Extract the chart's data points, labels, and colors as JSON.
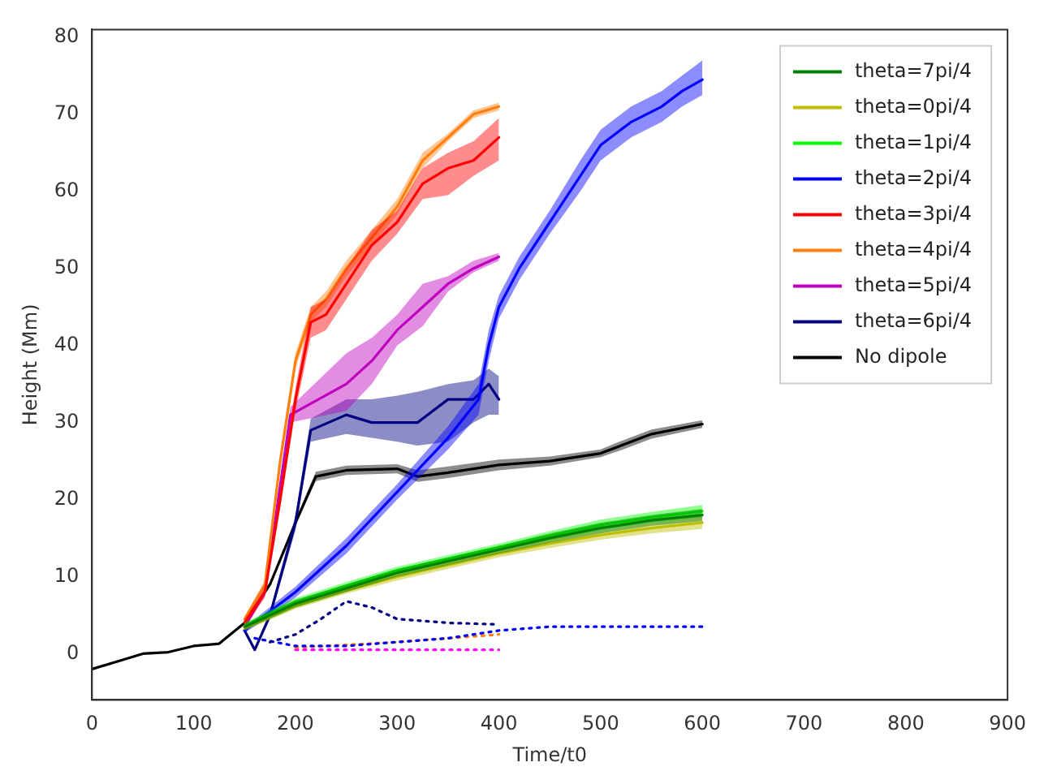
{
  "chart_data": {
    "type": "line",
    "xlabel": "Time/t0",
    "ylabel": "Height (Mm)",
    "xlim": [
      0,
      900
    ],
    "xticks": [
      0,
      100,
      200,
      300,
      400,
      500,
      600,
      700,
      800,
      900
    ],
    "ylim": [
      -6,
      81
    ],
    "yticks": [
      0,
      10,
      20,
      30,
      40,
      50,
      60,
      70,
      80
    ],
    "grid": false,
    "legend": "top right",
    "marker": "none",
    "series": [
      {
        "name": "theta=7pi/4",
        "color": "#008000",
        "x": [
          150,
          200,
          250,
          300,
          350,
          400,
          450,
          500,
          550,
          600
        ],
        "values": [
          3.5,
          6.5,
          8.5,
          10.5,
          12,
          13.5,
          15,
          16.3,
          17.3,
          18
        ],
        "lower": [
          3.1,
          6,
          8,
          10,
          11.5,
          13,
          14.4,
          15.6,
          16.6,
          17.2
        ],
        "upper": [
          3.9,
          7,
          9,
          11,
          12.5,
          14,
          15.6,
          17,
          18,
          18.8
        ]
      },
      {
        "name": "theta=0pi/4",
        "color": "#bfbf00",
        "x": [
          150,
          200,
          250,
          300,
          350,
          400,
          450,
          500,
          550,
          600
        ],
        "values": [
          3.3,
          6.2,
          8.2,
          10,
          11.5,
          13,
          14.3,
          15.4,
          16.3,
          17
        ],
        "lower": [
          3,
          5.8,
          7.8,
          9.5,
          11,
          12.5,
          13.7,
          14.8,
          15.6,
          16.2
        ],
        "upper": [
          3.6,
          6.6,
          8.6,
          10.5,
          12,
          13.5,
          14.9,
          16,
          17,
          17.8
        ]
      },
      {
        "name": "theta=1pi/4",
        "color": "#00ff00",
        "x": [
          150,
          200,
          250,
          300,
          350,
          400,
          450,
          500,
          550,
          600
        ],
        "values": [
          3.6,
          6.7,
          8.8,
          10.8,
          12.3,
          13.8,
          15.3,
          16.7,
          17.7,
          18.5
        ],
        "lower": [
          3.2,
          6.2,
          8.3,
          10.3,
          11.8,
          13.3,
          14.7,
          16,
          17,
          17.7
        ],
        "upper": [
          4,
          7.2,
          9.3,
          11.3,
          12.8,
          14.3,
          15.9,
          17.4,
          18.4,
          19.3
        ]
      },
      {
        "name": "theta=2pi/4",
        "color": "#0000ff",
        "x": [
          150,
          165,
          200,
          250,
          300,
          350,
          380,
          390,
          400,
          420,
          450,
          480,
          500,
          530,
          560,
          580,
          600
        ],
        "values": [
          3,
          4.5,
          8,
          14,
          21,
          28,
          33,
          40,
          45,
          50,
          56,
          62,
          66,
          69,
          71,
          73,
          74.5
        ],
        "lower": [
          2.7,
          4,
          7.3,
          13,
          20,
          26.5,
          31,
          38,
          43.5,
          48.5,
          54.5,
          60,
          64,
          67,
          69,
          71,
          72.5
        ],
        "upper": [
          3.3,
          5,
          8.7,
          15,
          22,
          29.5,
          35,
          42,
          46.5,
          51.5,
          57.5,
          64,
          68,
          71,
          73,
          75,
          77
        ]
      },
      {
        "name": "theta=3pi/4",
        "color": "#ff0000",
        "x": [
          150,
          170,
          185,
          200,
          215,
          230,
          250,
          275,
          300,
          325,
          350,
          375,
          400
        ],
        "values": [
          4,
          8,
          20,
          33,
          43,
          44,
          48,
          53,
          56,
          61,
          63,
          64,
          67
        ],
        "lower": [
          3.6,
          7.3,
          19,
          31.5,
          41,
          42,
          46,
          51,
          54.5,
          59,
          59.5,
          62,
          64
        ],
        "upper": [
          4.4,
          8.7,
          21,
          34.5,
          45,
          46,
          50,
          55,
          57.5,
          63,
          65,
          66.5,
          69.5
        ]
      },
      {
        "name": "theta=4pi/4",
        "color": "#ff7f0e",
        "x": [
          150,
          170,
          185,
          200,
          215,
          230,
          250,
          275,
          300,
          325,
          350,
          375,
          400
        ],
        "values": [
          4.5,
          9,
          25,
          38,
          44,
          46,
          50,
          54,
          58,
          64,
          67,
          70,
          71
        ],
        "lower": [
          4.2,
          8.5,
          24,
          37,
          43,
          45,
          49,
          53,
          57,
          63,
          66.5,
          69.5,
          70.5
        ],
        "upper": [
          4.8,
          9.5,
          26,
          39,
          45,
          47,
          51,
          55,
          59,
          65,
          67.5,
          70.5,
          71.5
        ]
      },
      {
        "name": "theta=5pi/4",
        "color": "#bf00bf",
        "x": [
          150,
          170,
          195,
          250,
          275,
          300,
          325,
          350,
          375,
          400
        ],
        "values": [
          3.5,
          8,
          31,
          35,
          38,
          42,
          45,
          48,
          50,
          51.5
        ],
        "lower": [
          3.2,
          7.5,
          30,
          31.5,
          35,
          40,
          42.5,
          47,
          49.5,
          51
        ],
        "upper": [
          3.8,
          8.5,
          32,
          39,
          41,
          44,
          48,
          49,
          51,
          52
        ]
      },
      {
        "name": "theta=6pi/4",
        "color": "#000080",
        "x": [
          150,
          160,
          175,
          200,
          215,
          250,
          275,
          300,
          320,
          350,
          375,
          390,
          400
        ],
        "values": [
          3,
          0.5,
          5,
          17,
          29,
          31,
          30,
          30,
          30,
          33,
          33,
          35,
          33
        ],
        "lower": [
          2.7,
          0.3,
          4.5,
          16,
          27.5,
          28.5,
          28,
          27.5,
          27,
          27.5,
          30,
          31,
          31
        ],
        "upper": [
          3.3,
          0.7,
          5.5,
          18,
          30.5,
          33,
          33,
          33.5,
          34,
          35,
          35.5,
          37,
          36
        ]
      },
      {
        "name": "No dipole",
        "color": "#000000",
        "x": [
          0,
          25,
          50,
          75,
          100,
          125,
          150,
          175,
          200,
          220,
          250,
          300,
          320,
          350,
          400,
          450,
          500,
          520,
          550,
          600
        ],
        "values": [
          -2,
          -1,
          0,
          0.2,
          1,
          1.3,
          4,
          9,
          17,
          23,
          23.8,
          24,
          23,
          23.5,
          24.5,
          25,
          26,
          27,
          28.5,
          29.8
        ],
        "lower": [
          -2,
          -1,
          0,
          0.2,
          1,
          1.3,
          3.8,
          8.7,
          16.6,
          22.4,
          23.2,
          23.4,
          22.3,
          22.8,
          23.8,
          24.4,
          25.5,
          26.4,
          27.9,
          29.3
        ],
        "upper": [
          -2,
          -1,
          0,
          0.2,
          1,
          1.3,
          4.2,
          9.3,
          17.4,
          23.6,
          24.4,
          24.6,
          23.8,
          24.3,
          25.2,
          25.6,
          26.5,
          27.6,
          29.1,
          30.3
        ]
      },
      {
        "color": "#000080",
        "line_style": "dotted",
        "x": [
          175,
          200,
          225,
          250,
          275,
          300,
          350,
          400
        ],
        "values": [
          1.5,
          2.5,
          4.5,
          6.8,
          6,
          4.5,
          4,
          3.8
        ]
      },
      {
        "color": "#0000ff",
        "line_style": "dotted",
        "x": [
          160,
          200,
          250,
          300,
          350,
          400,
          450,
          600
        ],
        "values": [
          2,
          1,
          1,
          1.5,
          2,
          3,
          3.5,
          3.5
        ]
      },
      {
        "color": "#ff7f0e",
        "line_style": "dotted",
        "x": [
          200,
          300,
          350,
          400
        ],
        "values": [
          0.8,
          1.5,
          2,
          2.5
        ]
      },
      {
        "color": "#ff00ff",
        "line_style": "dotted",
        "x": [
          200,
          300,
          400
        ],
        "values": [
          0.5,
          0.5,
          0.5
        ]
      }
    ]
  }
}
